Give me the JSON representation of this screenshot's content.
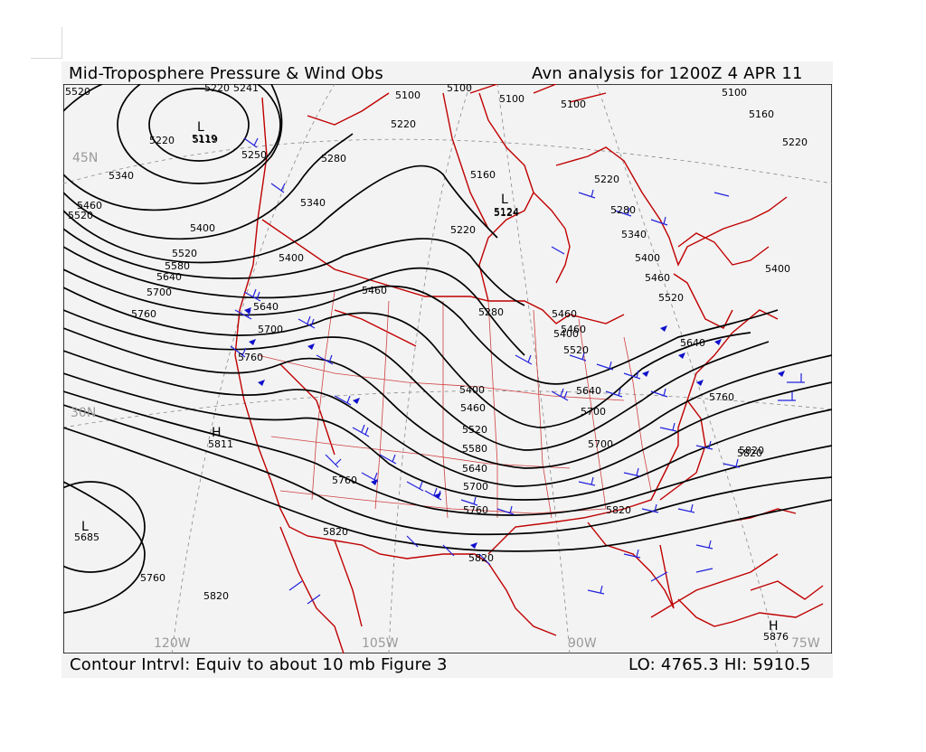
{
  "header": {
    "left_title": "Mid-Troposphere Pressure & Wind Obs",
    "right_title": "Avn analysis for 1200Z  4 APR 11"
  },
  "footer": {
    "left_text": "Contour Intrvl: Equiv to about 10 mb   Figure 3",
    "right_text": "LO: 4765.3  HI: 5910.5"
  },
  "lat_labels": [
    "45N",
    "30N"
  ],
  "lon_labels": [
    "120W",
    "105W",
    "90W",
    "75W"
  ],
  "contour_labels": [
    "5520",
    "5220",
    "5241",
    "5119",
    "5220",
    "5250",
    "5280",
    "5340",
    "5340",
    "5460",
    "5520",
    "5400",
    "5520",
    "5580",
    "5640",
    "5700",
    "5760",
    "5400",
    "5460",
    "5100",
    "5100",
    "5100",
    "5100",
    "5220",
    "5160",
    "5124",
    "5220",
    "5100",
    "5160",
    "5220",
    "5220",
    "5280",
    "5340",
    "5400",
    "5460",
    "5400",
    "5520",
    "5280",
    "5460",
    "5400",
    "5460",
    "5520",
    "5640",
    "5700",
    "5760",
    "5640",
    "5400",
    "5460",
    "5520",
    "5580",
    "5640",
    "5700",
    "5760",
    "5820",
    "5820",
    "5820",
    "5700",
    "5760",
    "5820",
    "5760",
    "5820",
    "5640",
    "5700",
    "5760",
    "5820"
  ],
  "centers": [
    {
      "symbol": "L",
      "value": "5119"
    },
    {
      "symbol": "L",
      "value": "5124"
    },
    {
      "symbol": "H",
      "value": "5811"
    },
    {
      "symbol": "L",
      "value": "5685"
    },
    {
      "symbol": "H",
      "value": "5876"
    }
  ],
  "colors": {
    "contours": "#000000",
    "political_boundaries": "#c00000",
    "wind_barbs": "#2222dd",
    "graticule": "#777777",
    "background": "#f3f3f3"
  }
}
